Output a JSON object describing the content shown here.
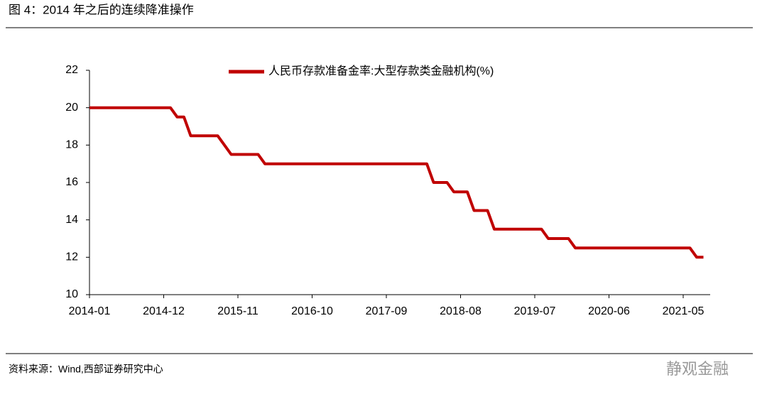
{
  "chart_data": {
    "type": "line",
    "title": "图 4：2014 年之后的连续降准操作",
    "source": "资料来源：Wind,西部证券研究中心",
    "watermark": "静观金融",
    "x": [
      "2014-01",
      "2014-02",
      "2014-03",
      "2014-04",
      "2014-05",
      "2014-06",
      "2014-07",
      "2014-08",
      "2014-09",
      "2014-10",
      "2014-11",
      "2014-12",
      "2015-01",
      "2015-02",
      "2015-03",
      "2015-04",
      "2015-05",
      "2015-06",
      "2015-07",
      "2015-08",
      "2015-09",
      "2015-10",
      "2015-11",
      "2015-12",
      "2016-01",
      "2016-02",
      "2016-03",
      "2016-04",
      "2016-05",
      "2016-06",
      "2016-07",
      "2016-08",
      "2016-09",
      "2016-10",
      "2016-11",
      "2016-12",
      "2017-01",
      "2017-02",
      "2017-03",
      "2017-04",
      "2017-05",
      "2017-06",
      "2017-07",
      "2017-08",
      "2017-09",
      "2017-10",
      "2017-11",
      "2017-12",
      "2018-01",
      "2018-02",
      "2018-03",
      "2018-04",
      "2018-05",
      "2018-06",
      "2018-07",
      "2018-08",
      "2018-09",
      "2018-10",
      "2018-11",
      "2018-12",
      "2019-01",
      "2019-02",
      "2019-03",
      "2019-04",
      "2019-05",
      "2019-06",
      "2019-07",
      "2019-08",
      "2019-09",
      "2019-10",
      "2019-11",
      "2019-12",
      "2020-01",
      "2020-02",
      "2020-03",
      "2020-04",
      "2020-05",
      "2020-06",
      "2020-07",
      "2020-08",
      "2020-09",
      "2020-10",
      "2020-11",
      "2020-12",
      "2021-01",
      "2021-02",
      "2021-03",
      "2021-04",
      "2021-05",
      "2021-06",
      "2021-07",
      "2021-08"
    ],
    "series": [
      {
        "name": "人民币存款准备金率:大型存款类金融机构(%)",
        "color": "#c00000",
        "values": [
          20,
          20,
          20,
          20,
          20,
          20,
          20,
          20,
          20,
          20,
          20,
          20,
          20,
          19.5,
          19.5,
          18.5,
          18.5,
          18.5,
          18.5,
          18.5,
          18,
          17.5,
          17.5,
          17.5,
          17.5,
          17.5,
          17,
          17,
          17,
          17,
          17,
          17,
          17,
          17,
          17,
          17,
          17,
          17,
          17,
          17,
          17,
          17,
          17,
          17,
          17,
          17,
          17,
          17,
          17,
          17,
          17,
          16,
          16,
          16,
          15.5,
          15.5,
          15.5,
          14.5,
          14.5,
          14.5,
          13.5,
          13.5,
          13.5,
          13.5,
          13.5,
          13.5,
          13.5,
          13.5,
          13,
          13,
          13,
          13,
          12.5,
          12.5,
          12.5,
          12.5,
          12.5,
          12.5,
          12.5,
          12.5,
          12.5,
          12.5,
          12.5,
          12.5,
          12.5,
          12.5,
          12.5,
          12.5,
          12.5,
          12.5,
          12,
          12
        ]
      }
    ],
    "xlim": [
      "2014-01",
      "2021-09"
    ],
    "xticks": [
      "2014-01",
      "2014-12",
      "2015-11",
      "2016-10",
      "2017-09",
      "2018-08",
      "2019-07",
      "2020-06",
      "2021-05"
    ],
    "ylim": [
      10,
      22
    ],
    "yticks": [
      10,
      12,
      14,
      16,
      18,
      20,
      22
    ],
    "grid": false,
    "legend": "top"
  }
}
